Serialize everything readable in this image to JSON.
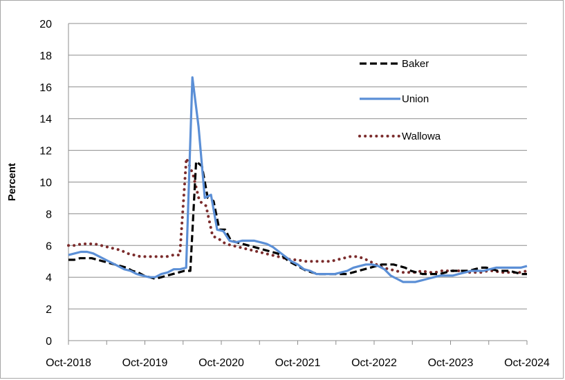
{
  "chart_data": {
    "type": "line",
    "ylabel": "Percent",
    "xlabel": "",
    "ylim": [
      0,
      20
    ],
    "yticks": [
      "0",
      "2",
      "4",
      "6",
      "8",
      "10",
      "12",
      "14",
      "16",
      "18",
      "20"
    ],
    "xticks": [
      "Oct-2018",
      "Oct-2019",
      "Oct-2020",
      "Oct-2021",
      "Oct-2022",
      "Oct-2023",
      "Oct-2024"
    ],
    "x_start": "Oct-2018",
    "x_end": "Oct-2024",
    "grid": "horizontal",
    "legend_position": "top-right",
    "series": [
      {
        "name": "Baker",
        "color": "#000000",
        "style": "dashed",
        "values": [
          5.1,
          5.1,
          5.2,
          5.2,
          5.2,
          5.1,
          5.0,
          4.9,
          4.8,
          4.7,
          4.6,
          4.4,
          4.3,
          4.1,
          4.0,
          3.9,
          4.0,
          4.1,
          4.2,
          4.3,
          4.4,
          4.4,
          11.3,
          11.0,
          9.0,
          8.8,
          7.0,
          7.0,
          6.3,
          6.2,
          6.1,
          6.0,
          5.9,
          5.8,
          5.7,
          5.6,
          5.5,
          5.3,
          5.0,
          4.8,
          4.6,
          4.4,
          4.3,
          4.2,
          4.2,
          4.2,
          4.2,
          4.2,
          4.2,
          4.3,
          4.4,
          4.5,
          4.6,
          4.7,
          4.8,
          4.8,
          4.8,
          4.7,
          4.6,
          4.4,
          4.3,
          4.2,
          4.2,
          4.2,
          4.2,
          4.3,
          4.4,
          4.4,
          4.4,
          4.4,
          4.5,
          4.6,
          4.6,
          4.5,
          4.4,
          4.4,
          4.4,
          4.3,
          4.2,
          4.2
        ]
      },
      {
        "name": "Union",
        "color": "#5b8fd6",
        "style": "solid",
        "values": [
          5.4,
          5.5,
          5.6,
          5.6,
          5.5,
          5.3,
          5.1,
          4.9,
          4.7,
          4.5,
          4.4,
          4.2,
          4.1,
          4.0,
          4.0,
          4.2,
          4.3,
          4.5,
          4.5,
          4.6,
          16.6,
          13.5,
          9.0,
          9.2,
          7.0,
          6.9,
          6.3,
          6.2,
          6.3,
          6.3,
          6.3,
          6.2,
          6.1,
          5.9,
          5.6,
          5.3,
          5.0,
          4.8,
          4.5,
          4.4,
          4.2,
          4.2,
          4.2,
          4.2,
          4.3,
          4.4,
          4.6,
          4.7,
          4.8,
          4.8,
          4.7,
          4.5,
          4.1,
          3.9,
          3.7,
          3.7,
          3.7,
          3.8,
          3.9,
          4.0,
          4.1,
          4.1,
          4.1,
          4.2,
          4.3,
          4.4,
          4.4,
          4.4,
          4.5,
          4.6,
          4.6,
          4.6,
          4.6,
          4.6,
          4.7
        ]
      },
      {
        "name": "Wallowa",
        "color": "#7b2c2c",
        "style": "dotted",
        "values": [
          6.0,
          6.0,
          6.1,
          6.1,
          6.1,
          6.0,
          5.9,
          5.8,
          5.7,
          5.5,
          5.4,
          5.3,
          5.3,
          5.3,
          5.3,
          5.3,
          5.4,
          5.4,
          11.5,
          10.5,
          8.8,
          8.5,
          6.6,
          6.4,
          6.1,
          6.0,
          5.9,
          5.8,
          5.7,
          5.6,
          5.5,
          5.4,
          5.3,
          5.2,
          5.1,
          5.1,
          5.0,
          5.0,
          5.0,
          5.0,
          5.0,
          5.1,
          5.2,
          5.3,
          5.3,
          5.2,
          5.0,
          4.8,
          4.6,
          4.5,
          4.4,
          4.3,
          4.3,
          4.3,
          4.4,
          4.3,
          4.3,
          4.4,
          4.4,
          4.4,
          4.4,
          4.3,
          4.3,
          4.3,
          4.4,
          4.4,
          4.3,
          4.3,
          4.3,
          4.3,
          4.4
        ]
      }
    ]
  }
}
